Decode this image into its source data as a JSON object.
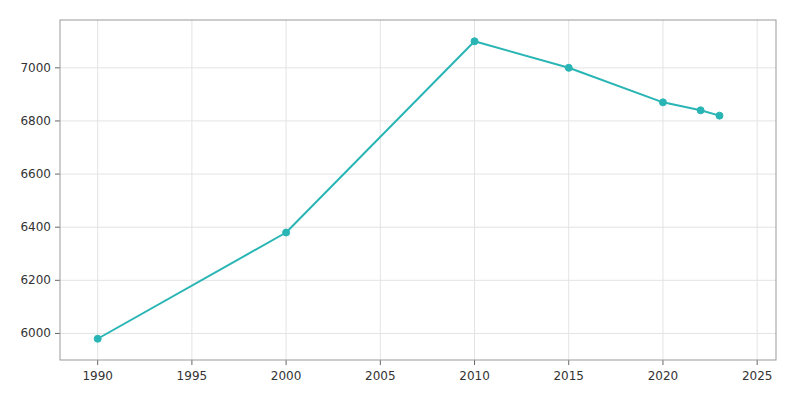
{
  "chart_data": {
    "type": "line",
    "x": [
      1990,
      2000,
      2010,
      2015,
      2020,
      2022,
      2023
    ],
    "values": [
      5980,
      6380,
      7100,
      7000,
      6870,
      6840,
      6820
    ],
    "color": "#2ab5b5",
    "marker": "circle",
    "xlim": [
      1988,
      2026
    ],
    "ylim": [
      5900,
      7180
    ],
    "xticks": [
      1990,
      1995,
      2000,
      2005,
      2010,
      2015,
      2020,
      2025
    ],
    "yticks": [
      6000,
      6200,
      6400,
      6600,
      6800,
      7000
    ],
    "grid": true
  }
}
